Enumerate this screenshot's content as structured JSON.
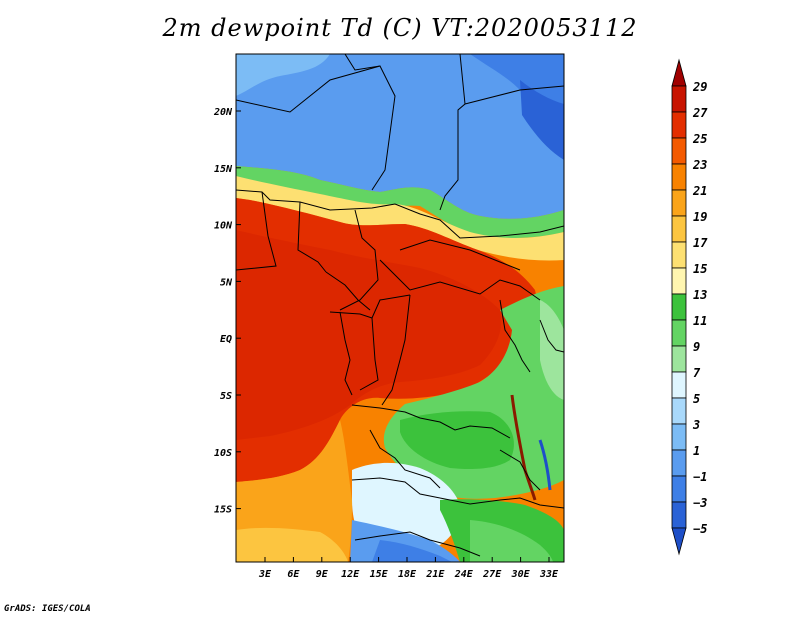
{
  "title": "2m dewpoint Td (C) VT:2020053112",
  "credit": "GrADS: IGES/COLA",
  "map": {
    "lon_labels": [
      "3E",
      "6E",
      "9E",
      "12E",
      "15E",
      "18E",
      "21E",
      "24E",
      "27E",
      "30E",
      "33E"
    ],
    "lat_labels": [
      "20N",
      "15N",
      "10N",
      "5N",
      "EQ",
      "5S",
      "10S",
      "15S"
    ]
  },
  "colorbar": {
    "levels": [
      "29",
      "27",
      "25",
      "23",
      "21",
      "19",
      "17",
      "15",
      "13",
      "11",
      "9",
      "7",
      "5",
      "3",
      "1",
      "-1",
      "-3",
      "-5"
    ],
    "colors": [
      "#a00000",
      "#c81400",
      "#e32e00",
      "#f45a00",
      "#f88200",
      "#faa41a",
      "#fcc540",
      "#fde072",
      "#fff6b0",
      "#3cc23c",
      "#63d463",
      "#9de59d",
      "#dff6ff",
      "#a9d9fb",
      "#7cbcf5",
      "#5a9cef",
      "#3e7fe6",
      "#2a62d6",
      "#1e4fc8"
    ]
  },
  "colors": {
    "frame": "#000000",
    "border_lines": "#000000"
  }
}
